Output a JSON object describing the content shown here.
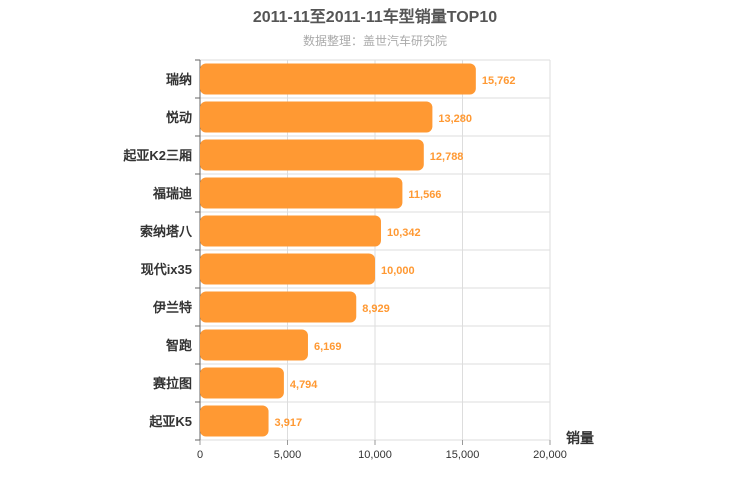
{
  "chart_data": {
    "type": "bar",
    "orientation": "horizontal",
    "title": "2011-11至2011-11车型销量TOP10",
    "subtitle": "数据整理：盖世汽车研究院",
    "categories": [
      "瑞纳",
      "悦动",
      "起亚K2三厢",
      "福瑞迪",
      "索纳塔八",
      "现代ix35",
      "伊兰特",
      "智跑",
      "赛拉图",
      "起亚K5"
    ],
    "values": [
      15762,
      13280,
      12788,
      11566,
      10342,
      10000,
      8929,
      6169,
      4794,
      3917
    ],
    "value_labels": [
      "15,762",
      "13,280",
      "12,788",
      "11,566",
      "10,342",
      "10,000",
      "8,929",
      "6,169",
      "4,794",
      "3,917"
    ],
    "xlabel": "销量",
    "ylabel": "",
    "xlim": [
      0,
      20000
    ],
    "xticks": [
      0,
      5000,
      10000,
      15000,
      20000
    ],
    "xtick_labels": [
      "0",
      "5,000",
      "10,000",
      "15,000",
      "20,000"
    ],
    "grid": true,
    "legend": "none",
    "bar_color": "#ff9933",
    "label_color": "#ff9933"
  }
}
